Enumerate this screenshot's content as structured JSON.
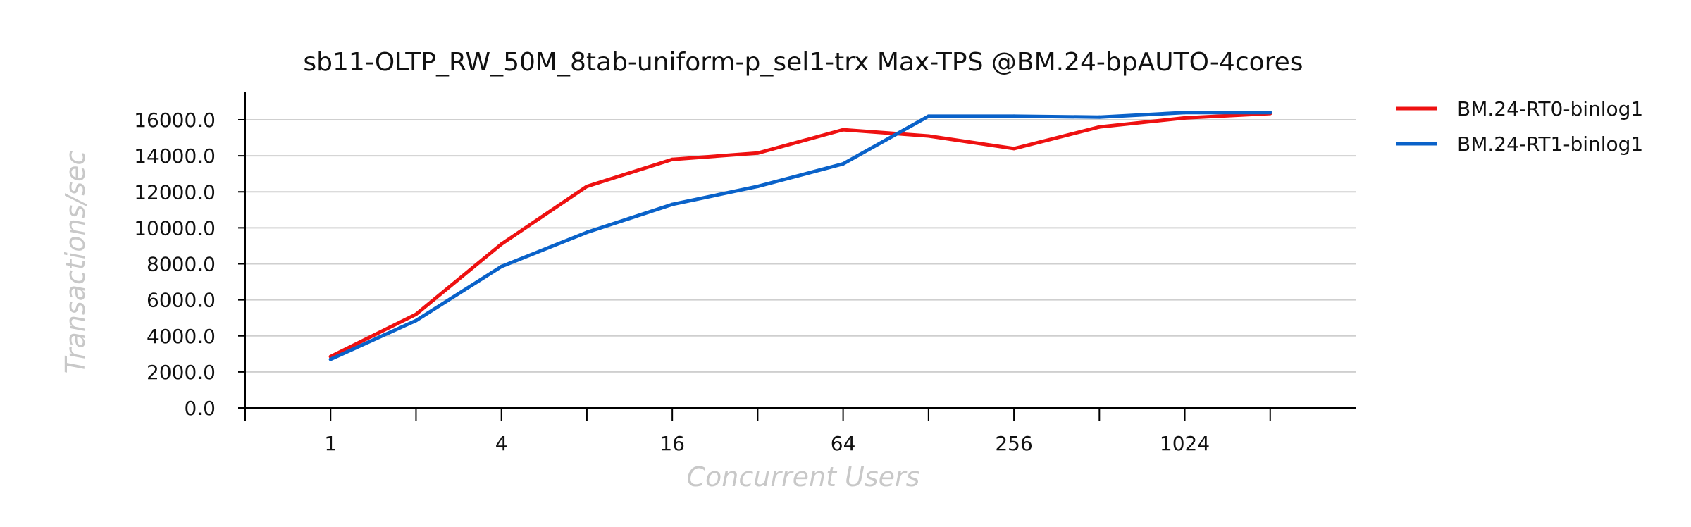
{
  "chart_data": {
    "type": "line",
    "title": "sb11-OLTP_RW_50M_8tab-uniform-p_sel1-trx Max-TPS @BM.24-bpAUTO-4cores",
    "xlabel": "Concurrent Users",
    "ylabel": "Transactions/sec",
    "x_scale": "log2",
    "x": [
      1,
      2,
      4,
      8,
      16,
      32,
      64,
      128,
      256,
      512,
      1024,
      2048
    ],
    "x_tick_values": [
      1,
      4,
      16,
      64,
      256,
      1024
    ],
    "x_tick_labels": [
      "1",
      "4",
      "16",
      "64",
      "256",
      "1024"
    ],
    "xlim": [
      0.5,
      4096
    ],
    "ylim": [
      0,
      16000
    ],
    "y_ticks": [
      0,
      2000,
      4000,
      6000,
      8000,
      10000,
      12000,
      14000,
      16000
    ],
    "y_tick_labels": [
      "0.0",
      "2000.0",
      "4000.0",
      "6000.0",
      "8000.0",
      "10000.0",
      "12000.0",
      "14000.0",
      "16000.0"
    ],
    "grid": "horizontal",
    "legend_position": "right",
    "series": [
      {
        "name": "BM.24-RT0-binlog1",
        "color": "#ee1111",
        "values": [
          2850,
          5200,
          9100,
          12300,
          13800,
          14150,
          15450,
          15100,
          14400,
          15600,
          16100,
          16350
        ]
      },
      {
        "name": "BM.24-RT1-binlog1",
        "color": "#0a62c9",
        "values": [
          2700,
          4850,
          7850,
          9750,
          11300,
          12300,
          13550,
          16200,
          16200,
          16150,
          16400,
          16400
        ]
      }
    ]
  }
}
